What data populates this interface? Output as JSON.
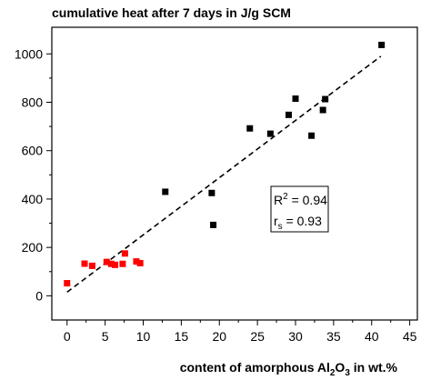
{
  "chart_data": {
    "type": "scatter",
    "title": "cumulative heat after 7 days in J/g SCM",
    "xlabel": {
      "prefix": "content of amorphous Al",
      "sub1": "2",
      "mid": "O",
      "sub2": "3",
      "suffix": " in wt.%"
    },
    "ylabel": "",
    "xlim": [
      -2,
      46
    ],
    "ylim": [
      -100,
      1110
    ],
    "xticks": [
      0,
      5,
      10,
      15,
      20,
      25,
      30,
      35,
      40,
      45
    ],
    "yticks": [
      0,
      200,
      400,
      600,
      800,
      1000
    ],
    "grid": false,
    "series": [
      {
        "color": "#ff0000",
        "marker": "square",
        "points": [
          [
            0,
            52
          ],
          [
            2.3,
            133
          ],
          [
            3.3,
            124
          ],
          [
            5.2,
            140
          ],
          [
            5.8,
            132
          ],
          [
            6.3,
            128
          ],
          [
            7.3,
            132
          ],
          [
            7.6,
            175
          ],
          [
            9.1,
            142
          ],
          [
            9.6,
            135
          ]
        ]
      },
      {
        "color": "#000000",
        "marker": "square",
        "points": [
          [
            12.9,
            430
          ],
          [
            19.0,
            425
          ],
          [
            19.2,
            293
          ],
          [
            24.0,
            692
          ],
          [
            26.7,
            670
          ],
          [
            29.1,
            748
          ],
          [
            30.0,
            815
          ],
          [
            32.1,
            662
          ],
          [
            33.6,
            768
          ],
          [
            33.9,
            813
          ],
          [
            41.3,
            1037
          ]
        ]
      }
    ],
    "trendline": {
      "style": "dashed",
      "color": "#000000",
      "x": [
        0,
        41.2
      ],
      "y": [
        15,
        990
      ]
    },
    "annotation": {
      "r2_label": "R",
      "r2_sup": "2",
      "r2_value": " = 0.94",
      "rs_label": "r",
      "rs_sub": "s",
      "rs_value": " = 0.93"
    }
  }
}
